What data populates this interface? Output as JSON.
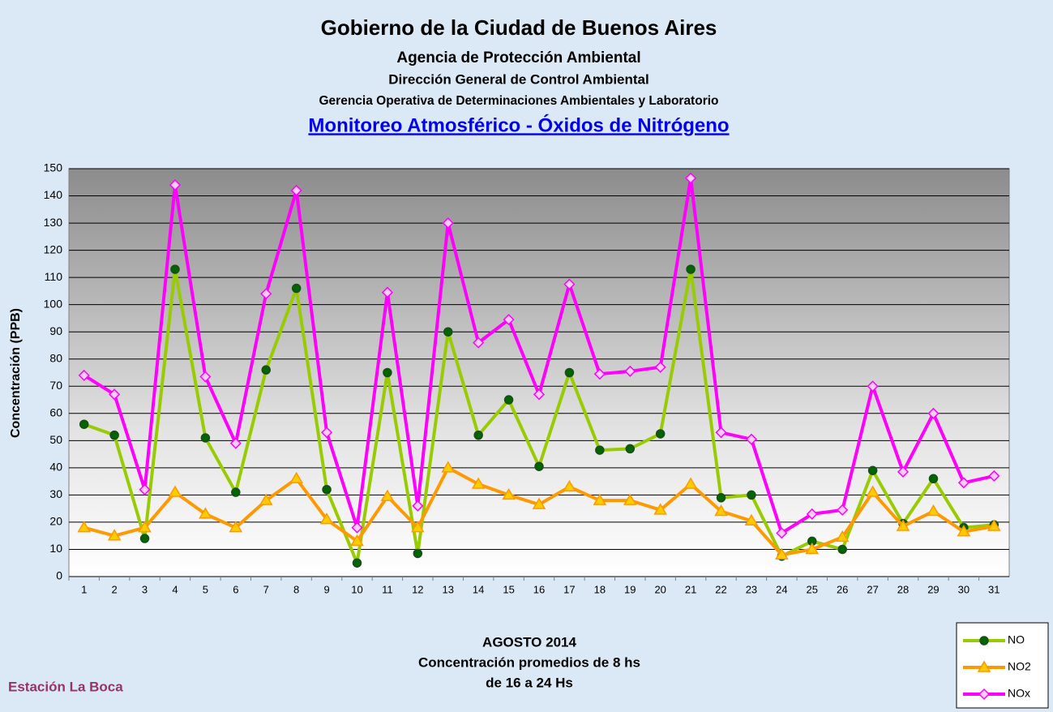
{
  "header": {
    "title": "Gobierno de la Ciudad de Buenos Aires",
    "lines": [
      "Agencia de Protección Ambiental",
      "Dirección General de Control Ambiental",
      "Gerencia Operativa de  Determinaciones Ambientales y Laboratorio"
    ],
    "link": "Monitoreo Atmosférico - Óxidos de Nitrógeno"
  },
  "chart_data": {
    "type": "line",
    "y_label": "Concentración  (PPB)",
    "categories": [
      1,
      2,
      3,
      4,
      5,
      6,
      7,
      8,
      9,
      10,
      11,
      12,
      13,
      14,
      15,
      16,
      17,
      18,
      19,
      20,
      21,
      22,
      23,
      24,
      25,
      26,
      27,
      28,
      29,
      30,
      31
    ],
    "series": [
      {
        "name": "NO",
        "color": "#99cc00",
        "marker_color": "#006400",
        "marker": "circle",
        "values": [
          56,
          52,
          14,
          113,
          51,
          31,
          76,
          106,
          32,
          5,
          75,
          8.5,
          90,
          52,
          65,
          40.5,
          75,
          46.5,
          47,
          52.5,
          113,
          29,
          30,
          7.5,
          13,
          10,
          39,
          19.5,
          36,
          18,
          19
        ]
      },
      {
        "name": "NO2",
        "color": "#ff9900",
        "marker_color": "#ffcc00",
        "marker": "triangle",
        "values": [
          18,
          15,
          18,
          31,
          23,
          18,
          28,
          36,
          21,
          13,
          29.5,
          18,
          40,
          34,
          30,
          26.5,
          33,
          28,
          28,
          24.5,
          34,
          24,
          20.5,
          8,
          10,
          14.5,
          31,
          18.5,
          24,
          16.5,
          18.5
        ]
      },
      {
        "name": "NOx",
        "color": "#ff00ff",
        "marker_color": "#ffccff",
        "marker": "diamond",
        "values": [
          74,
          67,
          32,
          144,
          73.5,
          49,
          104,
          142,
          53,
          18,
          104.5,
          26,
          130,
          86,
          94.5,
          67,
          107.5,
          74.5,
          75.5,
          77,
          146.5,
          53,
          50.5,
          16,
          23,
          24.5,
          70,
          38.5,
          60,
          34.5,
          37
        ]
      }
    ],
    "ylim": [
      0,
      150
    ],
    "yticks": [
      0,
      10,
      20,
      30,
      40,
      50,
      60,
      70,
      80,
      90,
      100,
      110,
      120,
      130,
      140,
      150
    ],
    "grid": true,
    "legend": "bottom-right"
  },
  "footer": {
    "caption": [
      "AGOSTO 2014",
      "Concentración promedios de 8 hs",
      "de 16 a 24 Hs"
    ],
    "station": "Estación La Boca"
  }
}
